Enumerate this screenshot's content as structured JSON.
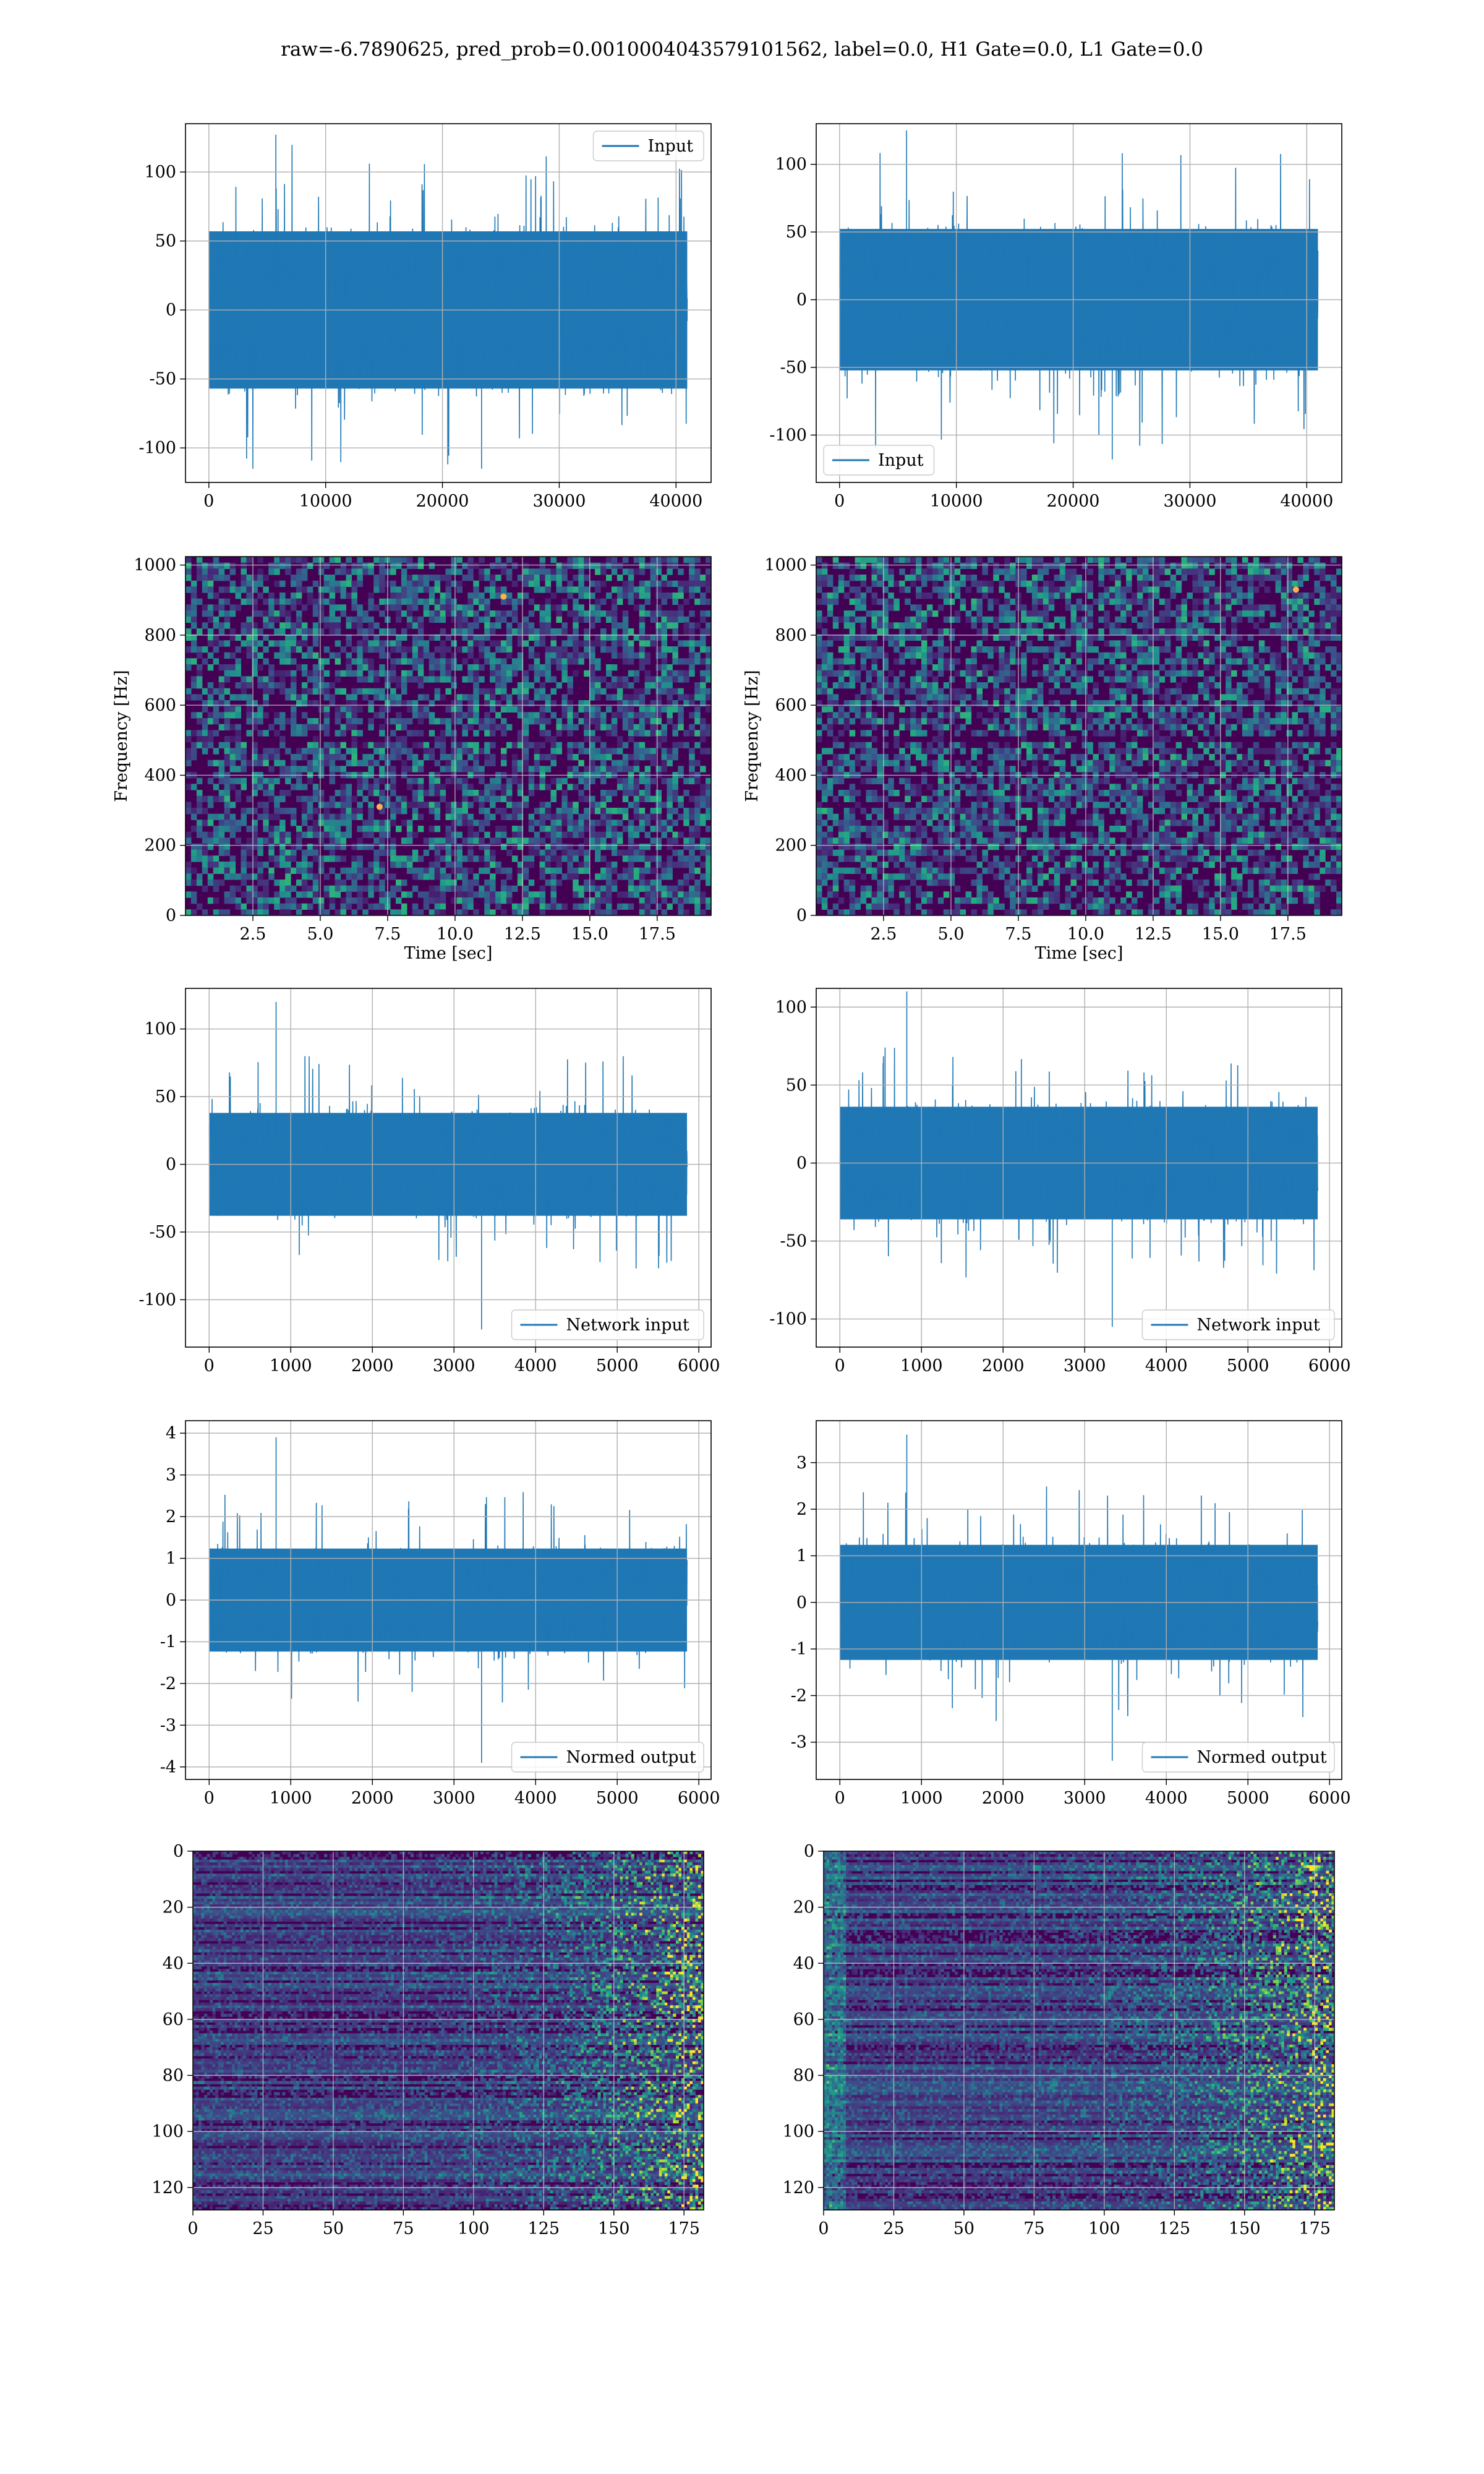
{
  "figure": {
    "title": "raw=-6.7890625, pred_prob=0.0010004043579101562, label=0.0, H1 Gate=0.0, L1 Gate=0.0"
  },
  "colors": {
    "series": "#1f77b4",
    "grid": "#b0b0b0",
    "viridis_low": "#440154",
    "viridis_mid": "#21918c",
    "viridis_high": "#fde725"
  },
  "chart_data": [
    {
      "id": "h1-input",
      "type": "line",
      "row": 0,
      "col": 0,
      "series": [
        {
          "name": "Input",
          "n_samples": 40960,
          "mean": 0,
          "envelope": [
            -60,
            60
          ],
          "extremes": [
            -115,
            127
          ]
        }
      ],
      "xlim": [
        -2000,
        43000
      ],
      "ylim": [
        -125,
        135
      ],
      "xticks": [
        0,
        10000,
        20000,
        30000,
        40000
      ],
      "yticks": [
        -100,
        -50,
        0,
        50,
        100
      ],
      "legend": "upper right",
      "grid": true,
      "xlabel": "",
      "ylabel": ""
    },
    {
      "id": "l1-input",
      "type": "line",
      "row": 0,
      "col": 1,
      "series": [
        {
          "name": "Input",
          "n_samples": 40960,
          "mean": 0,
          "envelope": [
            -55,
            55
          ],
          "extremes": [
            -118,
            125
          ]
        }
      ],
      "xlim": [
        -2000,
        43000
      ],
      "ylim": [
        -135,
        130
      ],
      "xticks": [
        0,
        10000,
        20000,
        30000,
        40000
      ],
      "yticks": [
        -100,
        -50,
        0,
        50,
        100
      ],
      "legend": "lower left",
      "grid": true,
      "xlabel": "",
      "ylabel": ""
    },
    {
      "id": "h1-spectrogram",
      "type": "heatmap",
      "row": 1,
      "col": 0,
      "xlim": [
        0,
        19.5
      ],
      "ylim": [
        0,
        1024
      ],
      "xticks": [
        2.5,
        5.0,
        7.5,
        10.0,
        12.5,
        15.0,
        17.5
      ],
      "yticks": [
        0,
        200,
        400,
        600,
        800,
        1000
      ],
      "xlabel": "Time [sec]",
      "ylabel": "Frequency [Hz]",
      "grid": true,
      "colormap": "viridis",
      "hot_spots": [
        [
          7.2,
          310
        ],
        [
          11.8,
          910
        ]
      ]
    },
    {
      "id": "l1-spectrogram",
      "type": "heatmap",
      "row": 1,
      "col": 1,
      "xlim": [
        0,
        19.5
      ],
      "ylim": [
        0,
        1024
      ],
      "xticks": [
        2.5,
        5.0,
        7.5,
        10.0,
        12.5,
        15.0,
        17.5
      ],
      "yticks": [
        0,
        200,
        400,
        600,
        800,
        1000
      ],
      "xlabel": "Time [sec]",
      "ylabel": "Frequency [Hz]",
      "grid": true,
      "colormap": "viridis",
      "hot_spots": [
        [
          17.8,
          930
        ]
      ]
    },
    {
      "id": "h1-network-input",
      "type": "line",
      "row": 2,
      "col": 0,
      "series": [
        {
          "name": "Network input",
          "n_samples": 5856,
          "mean": 0,
          "envelope": [
            -40,
            40
          ],
          "extremes": [
            -122,
            120
          ]
        }
      ],
      "xlim": [
        -290,
        6150
      ],
      "ylim": [
        -135,
        130
      ],
      "xticks": [
        0,
        1000,
        2000,
        3000,
        4000,
        5000,
        6000
      ],
      "yticks": [
        -100,
        -50,
        0,
        50,
        100
      ],
      "legend": "lower right",
      "grid": true,
      "xlabel": "",
      "ylabel": ""
    },
    {
      "id": "l1-network-input",
      "type": "line",
      "row": 2,
      "col": 1,
      "series": [
        {
          "name": "Network input",
          "n_samples": 5856,
          "mean": 0,
          "envelope": [
            -38,
            38
          ],
          "extremes": [
            -105,
            110
          ]
        }
      ],
      "xlim": [
        -290,
        6150
      ],
      "ylim": [
        -118,
        112
      ],
      "xticks": [
        0,
        1000,
        2000,
        3000,
        4000,
        5000,
        6000
      ],
      "yticks": [
        -100,
        -50,
        0,
        50,
        100
      ],
      "legend": "lower right",
      "grid": true,
      "xlabel": "",
      "ylabel": ""
    },
    {
      "id": "h1-normed-output",
      "type": "line",
      "row": 3,
      "col": 0,
      "series": [
        {
          "name": "Normed output",
          "n_samples": 5856,
          "mean": 0,
          "envelope": [
            -1.3,
            1.3
          ],
          "extremes": [
            -3.9,
            3.9
          ]
        }
      ],
      "xlim": [
        -290,
        6150
      ],
      "ylim": [
        -4.3,
        4.3
      ],
      "xticks": [
        0,
        1000,
        2000,
        3000,
        4000,
        5000,
        6000
      ],
      "yticks": [
        -4,
        -3,
        -2,
        -1,
        0,
        1,
        2,
        3,
        4
      ],
      "legend": "lower right",
      "grid": true,
      "xlabel": "",
      "ylabel": ""
    },
    {
      "id": "l1-normed-output",
      "type": "line",
      "row": 3,
      "col": 1,
      "series": [
        {
          "name": "Normed output",
          "n_samples": 5856,
          "mean": 0,
          "envelope": [
            -1.3,
            1.3
          ],
          "extremes": [
            -3.4,
            3.6
          ]
        }
      ],
      "xlim": [
        -290,
        6150
      ],
      "ylim": [
        -3.8,
        3.9
      ],
      "xticks": [
        0,
        1000,
        2000,
        3000,
        4000,
        5000,
        6000
      ],
      "yticks": [
        -3,
        -2,
        -1,
        0,
        1,
        2,
        3
      ],
      "legend": "lower right",
      "grid": true,
      "xlabel": "",
      "ylabel": ""
    },
    {
      "id": "h1-feature-map",
      "type": "heatmap",
      "row": 4,
      "col": 0,
      "shape": [
        128,
        183
      ],
      "xlim": [
        0,
        182
      ],
      "ylim": [
        128,
        0
      ],
      "xticks": [
        0,
        25,
        50,
        75,
        100,
        125,
        150,
        175
      ],
      "yticks": [
        0,
        20,
        40,
        60,
        80,
        100,
        120
      ],
      "grid": true,
      "colormap": "viridis",
      "xlabel": "",
      "ylabel": ""
    },
    {
      "id": "l1-feature-map",
      "type": "heatmap",
      "row": 4,
      "col": 1,
      "shape": [
        128,
        183
      ],
      "xlim": [
        0,
        182
      ],
      "ylim": [
        128,
        0
      ],
      "xticks": [
        0,
        25,
        50,
        75,
        100,
        125,
        150,
        175
      ],
      "yticks": [
        0,
        20,
        40,
        60,
        80,
        100,
        120
      ],
      "grid": true,
      "colormap": "viridis",
      "xlabel": "",
      "ylabel": ""
    }
  ]
}
